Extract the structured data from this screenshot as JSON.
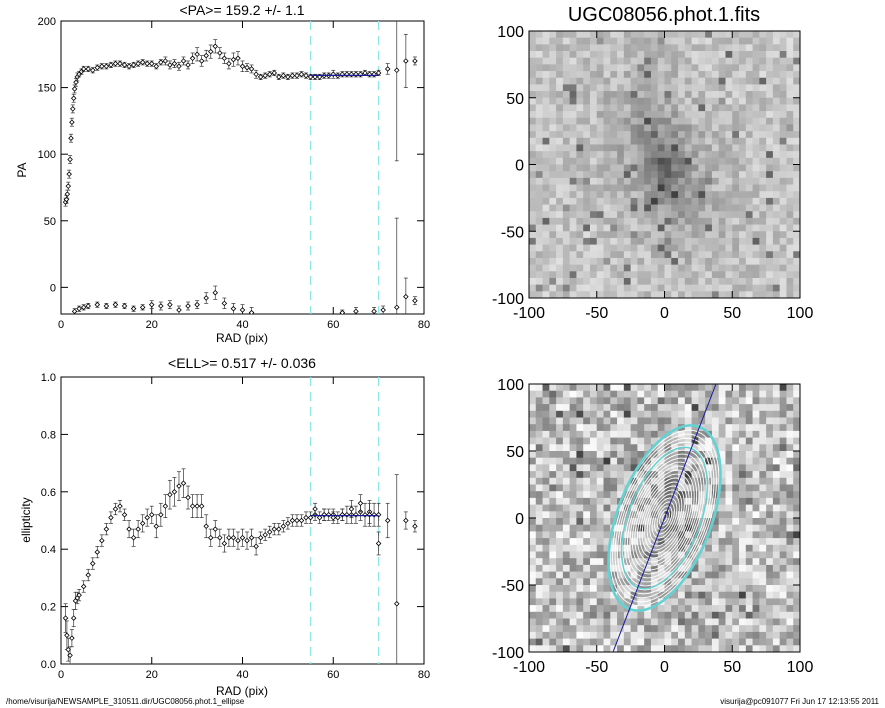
{
  "chart_data": [
    {
      "type": "scatter",
      "title": "<PA>= 159.2 +/-   1.1",
      "xlabel": "RAD (pix)",
      "ylabel": "PA",
      "xlim": [
        0,
        80
      ],
      "ylim": [
        -20,
        200
      ],
      "xticks": [
        "0",
        "20",
        "40",
        "60",
        "80"
      ],
      "yticks": [
        "0",
        "50",
        "100",
        "150",
        "200"
      ],
      "vlines": [
        55,
        70
      ],
      "fit": {
        "value": 159.2,
        "error": 1.1,
        "xrange": [
          55,
          70
        ]
      },
      "series": [
        {
          "points": [
            [
              1.0,
              64
            ],
            [
              1.2,
              66
            ],
            [
              1.4,
              70
            ],
            [
              1.6,
              76
            ],
            [
              1.8,
              85
            ],
            [
              2.0,
              96
            ],
            [
              2.2,
              112
            ],
            [
              2.4,
              124
            ],
            [
              2.6,
              134
            ],
            [
              2.8,
              142
            ],
            [
              3.0,
              149
            ],
            [
              3.3,
              154
            ],
            [
              3.6,
              158
            ],
            [
              4.0,
              160
            ],
            [
              4.5,
              162
            ],
            [
              5,
              164
            ],
            [
              6,
              164
            ],
            [
              7,
              163
            ],
            [
              8,
              165
            ],
            [
              9,
              166
            ],
            [
              10,
              166
            ],
            [
              11,
              167
            ],
            [
              12,
              168
            ],
            [
              13,
              168
            ],
            [
              14,
              167
            ],
            [
              15,
              166
            ],
            [
              16,
              167
            ],
            [
              17,
              168
            ],
            [
              18,
              169
            ],
            [
              19,
              168
            ],
            [
              20,
              168
            ],
            [
              21,
              166
            ],
            [
              22,
              169
            ],
            [
              23,
              170
            ],
            [
              24,
              167
            ],
            [
              25,
              168
            ],
            [
              26,
              166
            ],
            [
              27,
              170
            ],
            [
              28,
              167
            ],
            [
              29,
              172
            ],
            [
              30,
              175
            ],
            [
              31,
              170
            ],
            [
              32,
              174
            ],
            [
              33,
              177
            ],
            [
              34,
              181
            ],
            [
              35,
              176
            ],
            [
              36,
              172
            ],
            [
              37,
              168
            ],
            [
              38,
              171
            ],
            [
              39,
              172
            ],
            [
              40,
              166
            ],
            [
              41,
              165
            ],
            [
              42,
              164
            ],
            [
              43,
              160
            ],
            [
              44,
              158
            ],
            [
              45,
              159
            ],
            [
              46,
              160
            ],
            [
              47,
              161
            ],
            [
              48,
              158
            ],
            [
              49,
              159
            ],
            [
              50,
              158
            ],
            [
              51,
              159
            ],
            [
              52,
              159
            ],
            [
              53,
              160
            ],
            [
              54,
              159
            ]
          ],
          "errors": [
            3,
            3,
            3,
            3,
            3,
            3,
            3,
            3,
            3,
            3,
            3,
            3,
            3,
            2,
            2,
            2,
            2,
            2,
            2,
            2,
            2,
            2,
            2,
            2,
            2,
            2,
            2,
            2,
            2,
            2,
            2,
            2,
            2,
            3,
            3,
            3,
            3,
            3,
            3,
            4,
            5,
            4,
            4,
            5,
            5,
            4,
            4,
            4,
            5,
            5,
            4,
            3,
            3,
            3,
            2,
            2,
            2,
            2,
            2,
            2,
            2,
            2,
            2,
            2,
            2
          ]
        },
        {
          "points": [
            [
              55,
              158
            ],
            [
              56,
              158
            ],
            [
              57,
              158
            ],
            [
              58,
              159
            ],
            [
              59,
              159
            ],
            [
              60,
              160
            ],
            [
              61,
              159
            ],
            [
              62,
              160
            ],
            [
              63,
              160
            ],
            [
              64,
              160
            ],
            [
              65,
              160
            ],
            [
              66,
              160
            ],
            [
              67,
              161
            ],
            [
              68,
              160
            ],
            [
              69,
              160
            ],
            [
              70,
              161
            ]
          ],
          "errors": [
            2,
            2,
            2,
            2,
            2,
            3,
            2,
            2,
            2,
            2,
            2,
            2,
            2,
            2,
            2,
            2
          ]
        },
        {
          "points": [
            [
              72,
              164
            ],
            [
              74,
              163
            ],
            [
              76,
              170
            ],
            [
              78,
              170
            ]
          ],
          "errors": [
            4,
            68,
            20,
            3
          ]
        },
        {
          "points": [
            [
              3,
              -18
            ],
            [
              4,
              -16
            ],
            [
              5,
              -15
            ],
            [
              6,
              -14
            ],
            [
              8,
              -13
            ],
            [
              10,
              -14
            ],
            [
              12,
              -13
            ],
            [
              14,
              -14
            ],
            [
              16,
              -16
            ],
            [
              18,
              -15
            ],
            [
              20,
              -13
            ],
            [
              22,
              -14
            ],
            [
              24,
              -13
            ],
            [
              26,
              -17
            ],
            [
              28,
              -14
            ],
            [
              30,
              -13
            ],
            [
              32,
              -8
            ],
            [
              34,
              -4
            ],
            [
              36,
              -12
            ],
            [
              38,
              -16
            ],
            [
              40,
              -17
            ],
            [
              42,
              -19
            ]
          ],
          "errors": [
            2,
            2,
            2,
            2,
            2,
            2,
            2,
            2,
            2,
            2,
            3,
            3,
            3,
            3,
            3,
            3,
            4,
            5,
            4,
            4,
            4,
            4
          ]
        },
        {
          "points": [
            [
              62,
              -19
            ],
            [
              65,
              -18
            ],
            [
              69,
              -18
            ],
            [
              71,
              -17
            ],
            [
              74,
              -15
            ],
            [
              76,
              -7
            ],
            [
              78,
              -10
            ]
          ],
          "errors": [
            2,
            3,
            3,
            3,
            67,
            14,
            3
          ]
        }
      ]
    },
    {
      "type": "heatmap",
      "title": "UGC08056.phot.1.fits",
      "xlim": [
        -100,
        100
      ],
      "ylim": [
        -100,
        100
      ],
      "xticks": [
        "-100",
        "-50",
        "0",
        "50",
        "100"
      ],
      "yticks": [
        "-100",
        "-50",
        "0",
        "50",
        "100"
      ],
      "colormap": "grayscale"
    },
    {
      "type": "scatter",
      "title": "<ELL>= 0.517 +/-  0.036",
      "xlabel": "RAD (pix)",
      "ylabel": "ellipticity",
      "xlim": [
        0,
        80
      ],
      "ylim": [
        0,
        1
      ],
      "xticks": [
        "0",
        "20",
        "40",
        "60",
        "80"
      ],
      "yticks": [
        "0.0",
        "0.2",
        "0.4",
        "0.6",
        "0.8",
        "1.0"
      ],
      "vlines": [
        55,
        70
      ],
      "fit": {
        "value": 0.517,
        "error": 0.036,
        "xrange": [
          55,
          70
        ]
      },
      "series": [
        {
          "points": [
            [
              1.0,
              0.16
            ],
            [
              1.3,
              0.1
            ],
            [
              1.6,
              0.05
            ],
            [
              2.0,
              0.03
            ],
            [
              2.4,
              0.09
            ],
            [
              2.8,
              0.16
            ],
            [
              3.2,
              0.22
            ],
            [
              3.6,
              0.23
            ],
            [
              4.0,
              0.24
            ],
            [
              5,
              0.27
            ],
            [
              6,
              0.31
            ],
            [
              7,
              0.35
            ],
            [
              8,
              0.39
            ],
            [
              9,
              0.43
            ],
            [
              10,
              0.47
            ],
            [
              11,
              0.51
            ],
            [
              12,
              0.54
            ],
            [
              13,
              0.55
            ],
            [
              14,
              0.52
            ],
            [
              15,
              0.47
            ],
            [
              16,
              0.44
            ],
            [
              17,
              0.47
            ],
            [
              18,
              0.49
            ],
            [
              19,
              0.51
            ],
            [
              20,
              0.52
            ],
            [
              21,
              0.48
            ],
            [
              22,
              0.52
            ],
            [
              23,
              0.55
            ],
            [
              24,
              0.59
            ],
            [
              25,
              0.6
            ],
            [
              26,
              0.62
            ],
            [
              27,
              0.63
            ],
            [
              28,
              0.58
            ],
            [
              29,
              0.55
            ],
            [
              30,
              0.55
            ],
            [
              31,
              0.55
            ],
            [
              32,
              0.48
            ],
            [
              33,
              0.44
            ],
            [
              34,
              0.47
            ],
            [
              35,
              0.44
            ],
            [
              36,
              0.42
            ],
            [
              37,
              0.44
            ],
            [
              38,
              0.44
            ],
            [
              39,
              0.43
            ],
            [
              40,
              0.44
            ],
            [
              41,
              0.43
            ],
            [
              42,
              0.44
            ],
            [
              43,
              0.41
            ],
            [
              44,
              0.44
            ],
            [
              45,
              0.45
            ],
            [
              46,
              0.46
            ],
            [
              47,
              0.47
            ],
            [
              48,
              0.47
            ],
            [
              49,
              0.48
            ],
            [
              50,
              0.49
            ],
            [
              51,
              0.5
            ],
            [
              52,
              0.5
            ],
            [
              53,
              0.5
            ],
            [
              54,
              0.51
            ]
          ],
          "errors": [
            0.05,
            0.05,
            0.04,
            0.03,
            0.03,
            0.03,
            0.03,
            0.02,
            0.02,
            0.02,
            0.02,
            0.02,
            0.02,
            0.02,
            0.02,
            0.02,
            0.02,
            0.02,
            0.02,
            0.03,
            0.03,
            0.03,
            0.03,
            0.03,
            0.03,
            0.04,
            0.04,
            0.04,
            0.05,
            0.05,
            0.05,
            0.05,
            0.04,
            0.04,
            0.04,
            0.04,
            0.04,
            0.03,
            0.03,
            0.03,
            0.03,
            0.03,
            0.03,
            0.03,
            0.03,
            0.03,
            0.03,
            0.03,
            0.02,
            0.02,
            0.02,
            0.02,
            0.02,
            0.02,
            0.02,
            0.02,
            0.02,
            0.02,
            0.02
          ]
        },
        {
          "points": [
            [
              55,
              0.51
            ],
            [
              56,
              0.52
            ],
            [
              57,
              0.51
            ],
            [
              58,
              0.52
            ],
            [
              59,
              0.52
            ],
            [
              60,
              0.52
            ],
            [
              61,
              0.51
            ],
            [
              62,
              0.52
            ],
            [
              63,
              0.52
            ],
            [
              64,
              0.52
            ],
            [
              65,
              0.52
            ],
            [
              66,
              0.53
            ],
            [
              67,
              0.52
            ],
            [
              68,
              0.53
            ],
            [
              69,
              0.52
            ],
            [
              70,
              0.52
            ]
          ],
          "errors": [
            0.02,
            0.02,
            0.02,
            0.02,
            0.02,
            0.02,
            0.02,
            0.02,
            0.03,
            0.03,
            0.03,
            0.03,
            0.04,
            0.04,
            0.04,
            0.04
          ]
        },
        {
          "points": [
            [
              56,
              0.54
            ],
            [
              58,
              0.52
            ],
            [
              60,
              0.51
            ],
            [
              62,
              0.52
            ],
            [
              64,
              0.54
            ],
            [
              66,
              0.56
            ],
            [
              68,
              0.52
            ],
            [
              70,
              0.42
            ],
            [
              72,
              0.5
            ],
            [
              74,
              0.21
            ],
            [
              76,
              0.5
            ],
            [
              78,
              0.48
            ]
          ],
          "errors": [
            0.02,
            0.02,
            0.02,
            0.02,
            0.03,
            0.03,
            0.04,
            0.04,
            0.06,
            0.45,
            0.03,
            0.02
          ]
        }
      ]
    },
    {
      "type": "heatmap",
      "title": "",
      "xlim": [
        -100,
        100
      ],
      "ylim": [
        -100,
        100
      ],
      "xticks": [
        "-100",
        "-50",
        "0",
        "50",
        "100"
      ],
      "yticks": [
        "-100",
        "-50",
        "0",
        "50",
        "100"
      ],
      "colormap": "grayscale",
      "overlay": "isophote ellipses with fitted ellipse and position-angle line"
    }
  ],
  "footer": {
    "left": "/home/visurija/NEWSAMPLE_310511.dir/UGC08056.phot.1_ellipse",
    "right": "visurija@pc091077  Fri Jun 17 12:13:55 2011"
  },
  "colors": {
    "fit_line": "#1a1a9a",
    "guide_line": "#8ee6e6",
    "ellipse": "#64d2d2",
    "markers": "#000000"
  }
}
